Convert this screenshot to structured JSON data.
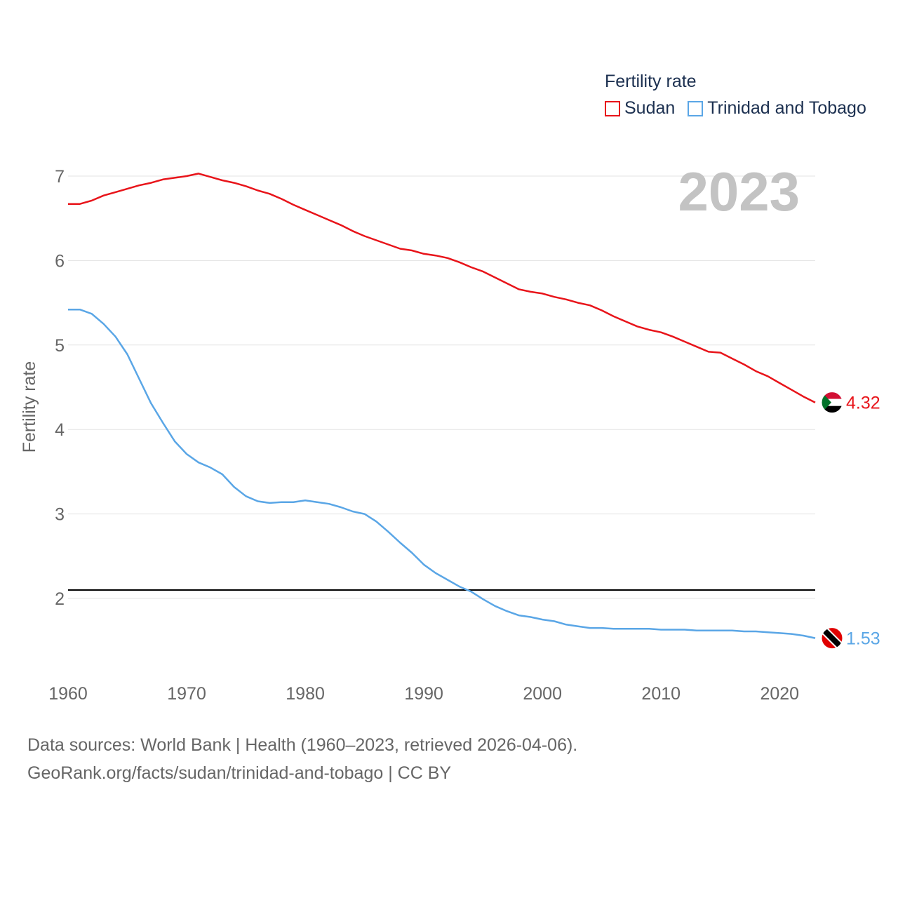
{
  "legend": {
    "title": "Fertility rate",
    "items": [
      {
        "label": "Sudan",
        "color": "#e8141a"
      },
      {
        "label": "Trinidad and Tobago",
        "color": "#5aa6e6"
      }
    ]
  },
  "year_watermark": "2023",
  "footer": {
    "line1": "Data sources: World Bank | Health (1960–2023, retrieved 2026-04-06).",
    "line2": "GeoRank.org/facts/sudan/trinidad-and-tobago | CC BY"
  },
  "chart_data": {
    "type": "line",
    "title": "",
    "xlabel": "",
    "ylabel": "Fertility rate",
    "xlim": [
      1960,
      2023
    ],
    "ylim": [
      1.0,
      7.4
    ],
    "x_ticks": [
      1960,
      1970,
      1980,
      1990,
      2000,
      2010,
      2020
    ],
    "y_ticks": [
      2,
      3,
      4,
      5,
      6,
      7
    ],
    "grid": true,
    "reference_line": {
      "value": 2.1,
      "color": "#000000"
    },
    "x": [
      1960,
      1961,
      1962,
      1963,
      1964,
      1965,
      1966,
      1967,
      1968,
      1969,
      1970,
      1971,
      1972,
      1973,
      1974,
      1975,
      1976,
      1977,
      1978,
      1979,
      1980,
      1981,
      1982,
      1983,
      1984,
      1985,
      1986,
      1987,
      1988,
      1989,
      1990,
      1991,
      1992,
      1993,
      1994,
      1995,
      1996,
      1997,
      1998,
      1999,
      2000,
      2001,
      2002,
      2003,
      2004,
      2005,
      2006,
      2007,
      2008,
      2009,
      2010,
      2011,
      2012,
      2013,
      2014,
      2015,
      2016,
      2017,
      2018,
      2019,
      2020,
      2021,
      2022,
      2023
    ],
    "series": [
      {
        "name": "Sudan",
        "color": "#e8141a",
        "end_label": "4.32",
        "values": [
          6.67,
          6.67,
          6.71,
          6.77,
          6.81,
          6.85,
          6.89,
          6.92,
          6.96,
          6.98,
          7.0,
          7.03,
          6.99,
          6.95,
          6.92,
          6.88,
          6.83,
          6.79,
          6.73,
          6.66,
          6.6,
          6.54,
          6.48,
          6.42,
          6.35,
          6.29,
          6.24,
          6.19,
          6.14,
          6.12,
          6.08,
          6.06,
          6.03,
          5.98,
          5.92,
          5.87,
          5.8,
          5.73,
          5.66,
          5.63,
          5.61,
          5.57,
          5.54,
          5.5,
          5.47,
          5.41,
          5.34,
          5.28,
          5.22,
          5.18,
          5.15,
          5.1,
          5.04,
          4.98,
          4.92,
          4.91,
          4.84,
          4.77,
          4.69,
          4.63,
          4.55,
          4.47,
          4.39,
          4.32
        ]
      },
      {
        "name": "Trinidad and Tobago",
        "color": "#5aa6e6",
        "end_label": "1.53",
        "values": [
          5.42,
          5.42,
          5.37,
          5.25,
          5.1,
          4.89,
          4.6,
          4.31,
          4.08,
          3.86,
          3.71,
          3.61,
          3.55,
          3.47,
          3.32,
          3.21,
          3.15,
          3.13,
          3.14,
          3.14,
          3.16,
          3.14,
          3.12,
          3.08,
          3.03,
          3.0,
          2.91,
          2.79,
          2.66,
          2.54,
          2.4,
          2.3,
          2.22,
          2.14,
          2.08,
          1.99,
          1.91,
          1.85,
          1.8,
          1.78,
          1.75,
          1.73,
          1.69,
          1.67,
          1.65,
          1.65,
          1.64,
          1.64,
          1.64,
          1.64,
          1.63,
          1.63,
          1.63,
          1.62,
          1.62,
          1.62,
          1.62,
          1.61,
          1.61,
          1.6,
          1.59,
          1.58,
          1.56,
          1.53
        ]
      }
    ]
  }
}
